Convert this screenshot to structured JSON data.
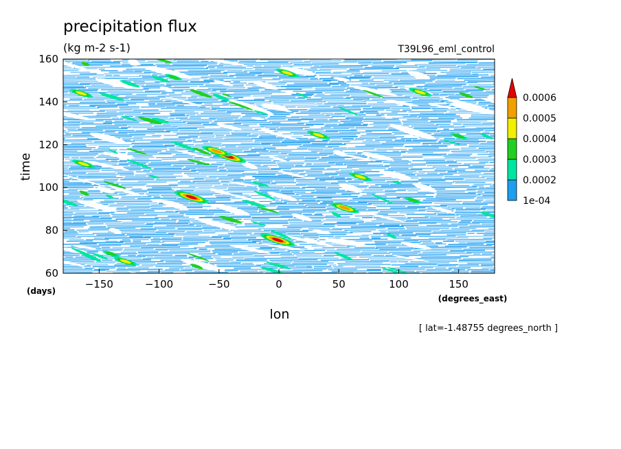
{
  "chart_data": {
    "type": "heatmap",
    "title": "precipitation flux",
    "subtitle": "(kg m-2 s-1)",
    "run_label": "T39L96_eml_control",
    "xlabel": "lon",
    "x_units": "(degrees_east)",
    "ylabel": "time",
    "y_units": "(days)",
    "footnote": "[ lat=-1.48755 degrees_north ]",
    "xlim": [
      -180,
      180
    ],
    "ylim": [
      60,
      160
    ],
    "x_ticks": [
      -150,
      -100,
      -50,
      0,
      50,
      100,
      150
    ],
    "x_tick_labels": [
      "−150",
      "−100",
      "−50",
      "0",
      "50",
      "100",
      "150"
    ],
    "y_ticks": [
      60,
      80,
      100,
      120,
      140,
      160
    ],
    "y_tick_labels": [
      "60",
      "80",
      "100",
      "120",
      "140",
      "160"
    ],
    "color_levels": [
      {
        "label": "1e-04",
        "value": 0.0001,
        "color": "#1e9ef0"
      },
      {
        "label": "0.0002",
        "value": 0.0002,
        "color": "#00e6a0"
      },
      {
        "label": "0.0003",
        "value": 0.0003,
        "color": "#20d020"
      },
      {
        "label": "0.0004",
        "value": 0.0004,
        "color": "#f0f000"
      },
      {
        "label": "0.0005",
        "value": 0.0005,
        "color": "#f0a000"
      },
      {
        "label": "0.0006",
        "value": 0.0006,
        "color": "#e60000"
      }
    ],
    "peaks": [
      {
        "lon": -73,
        "time": 95.5,
        "value": 0.0006
      },
      {
        "lon": -42,
        "time": 114.5,
        "value": 0.0006
      },
      {
        "lon": -1,
        "time": 75.5,
        "value": 0.0006
      },
      {
        "lon": -52,
        "time": 117,
        "value": 0.0005
      },
      {
        "lon": 55,
        "time": 90.5,
        "value": 0.0005
      },
      {
        "lon": -165,
        "time": 144,
        "value": 0.0004
      },
      {
        "lon": -163,
        "time": 111,
        "value": 0.0004
      },
      {
        "lon": 118,
        "time": 144.5,
        "value": 0.0004
      },
      {
        "lon": 7,
        "time": 153.5,
        "value": 0.0004
      },
      {
        "lon": -128,
        "time": 65.5,
        "value": 0.0004
      },
      {
        "lon": 68,
        "time": 105,
        "value": 0.0004
      },
      {
        "lon": 33,
        "time": 124.5,
        "value": 0.0004
      },
      {
        "lon": 150,
        "time": 124,
        "value": 0.0003
      },
      {
        "lon": 112,
        "time": 94,
        "value": 0.0003
      },
      {
        "lon": -88,
        "time": 151.5,
        "value": 0.0003
      },
      {
        "lon": -140,
        "time": 69,
        "value": 0.0003
      }
    ]
  }
}
